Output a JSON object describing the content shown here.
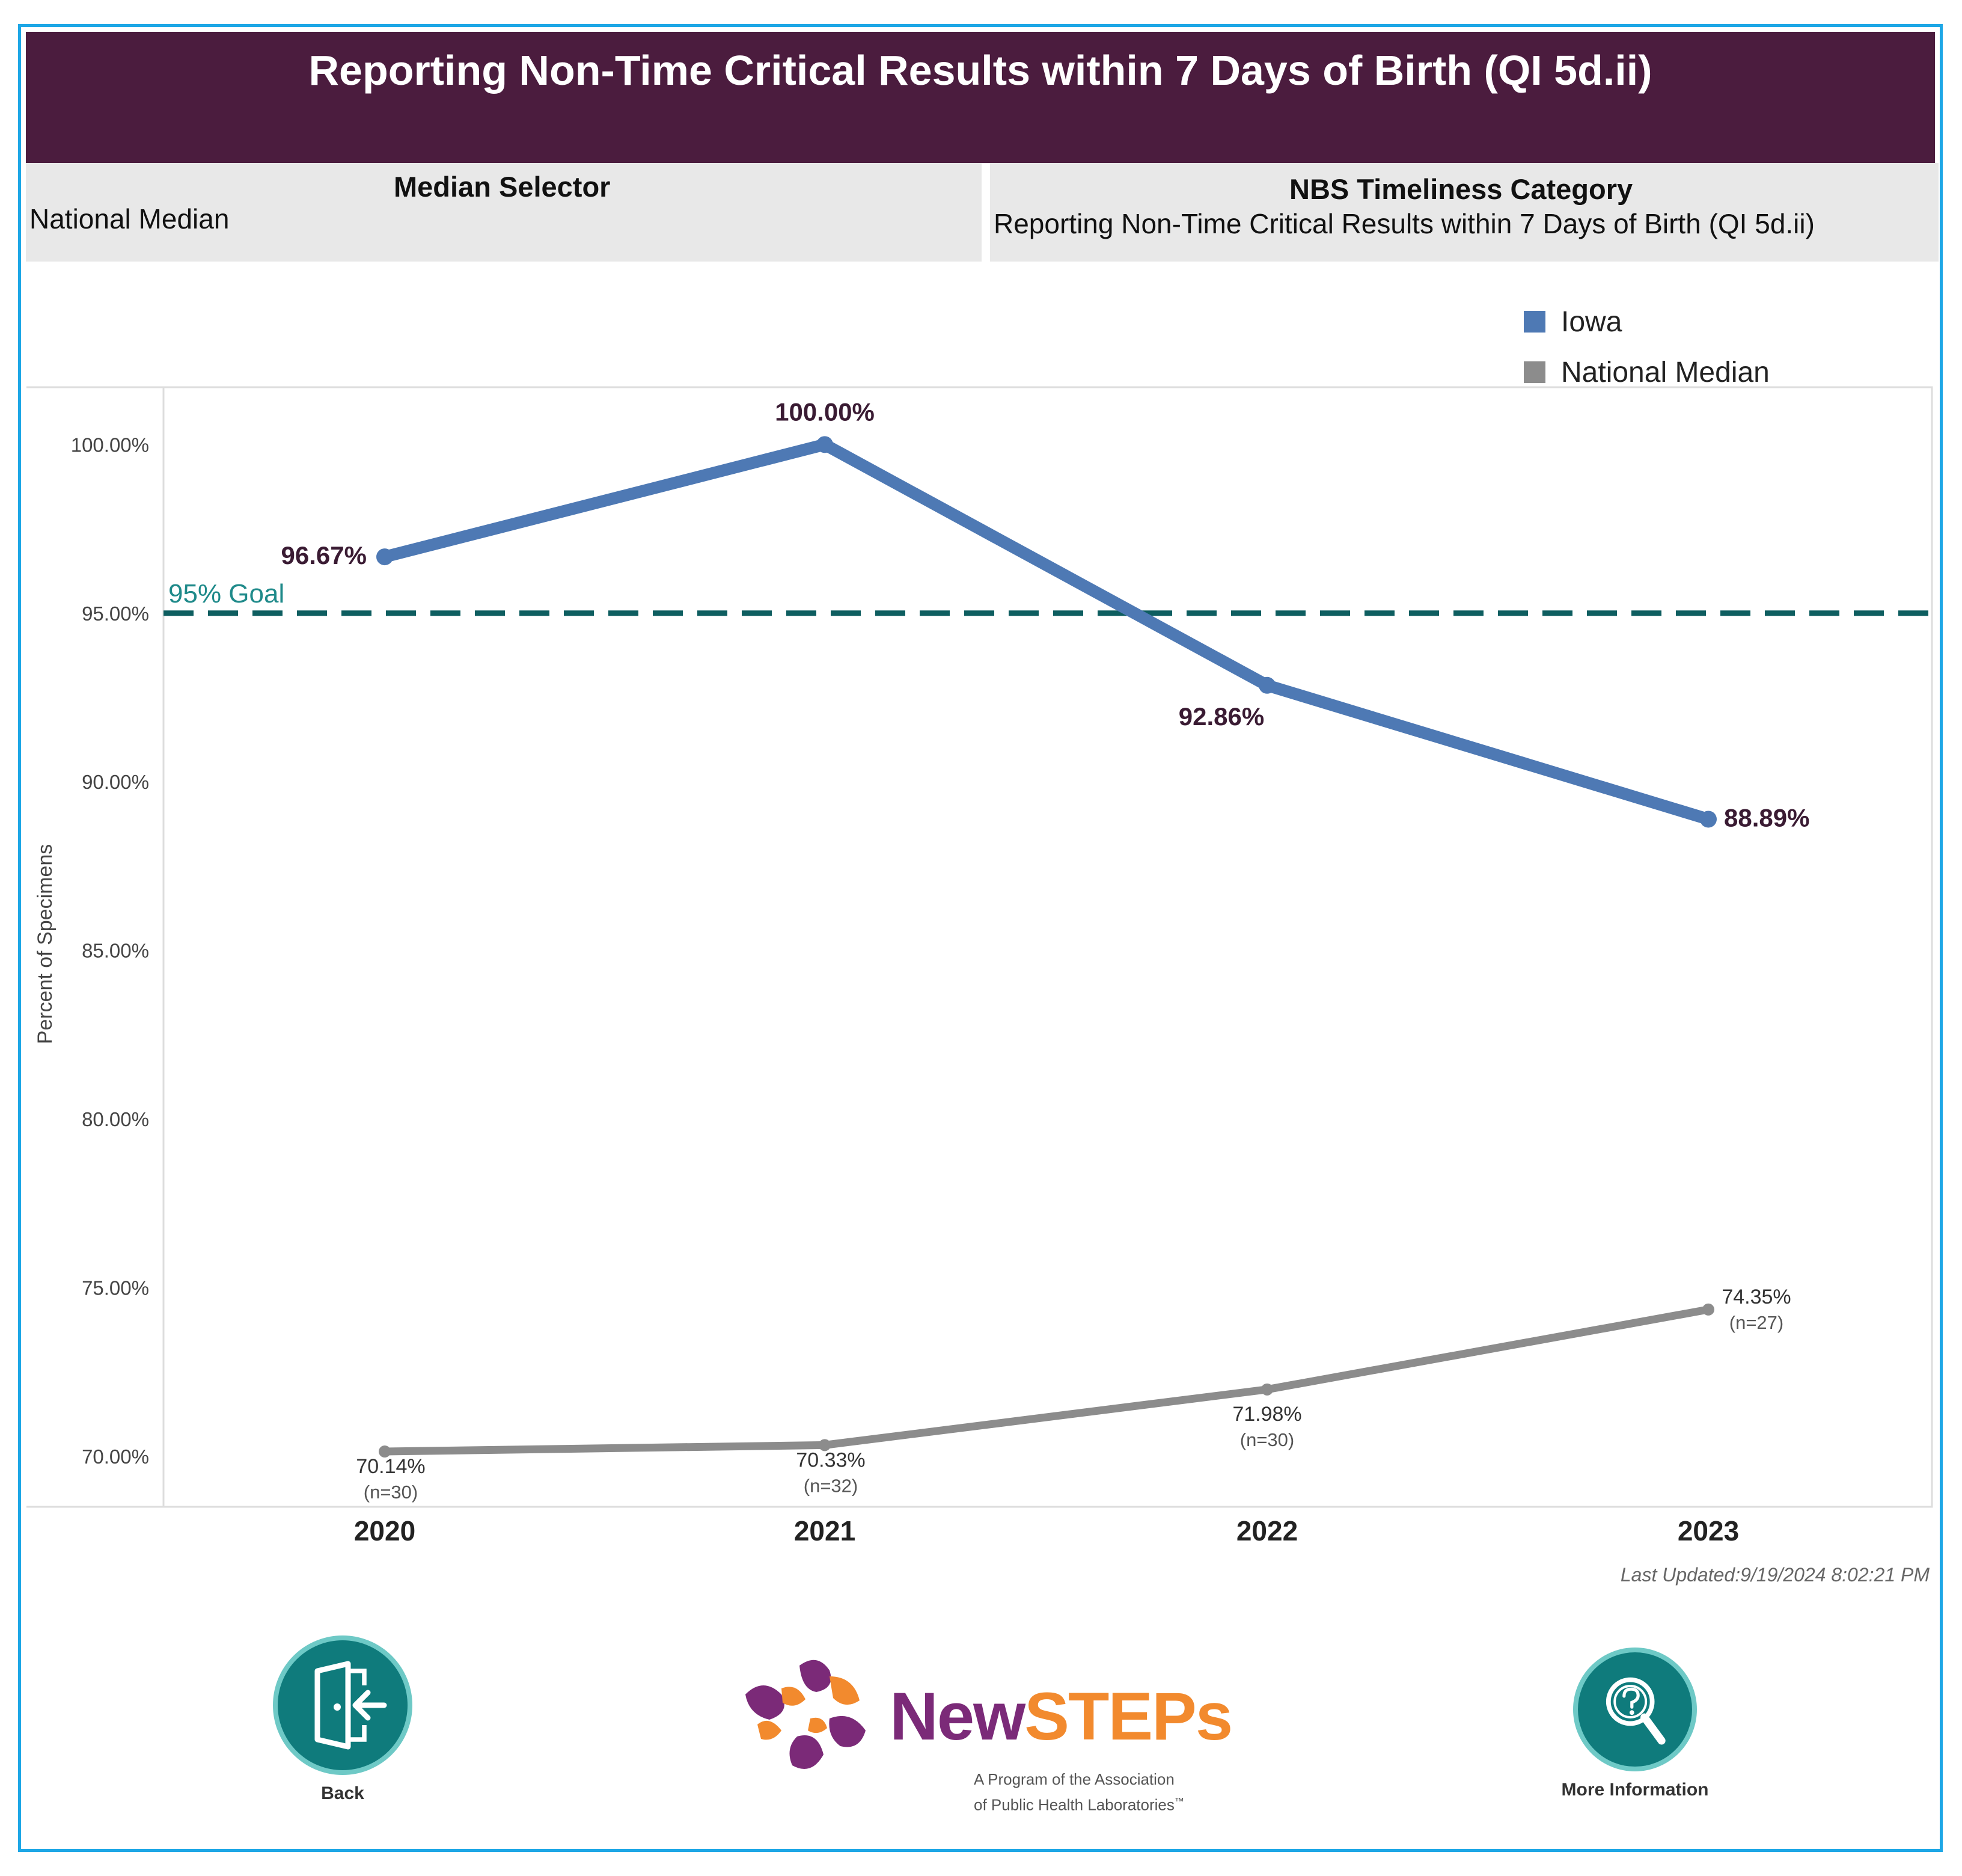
{
  "title": "Reporting Non-Time Critical Results within 7 Days of Birth (QI 5d.ii)",
  "median_selector": {
    "label": "Median Selector",
    "value": "National Median"
  },
  "timeliness_category": {
    "label": "NBS Timeliness Category",
    "value": "Reporting Non-Time Critical Results within 7 Days of Birth (QI 5d.ii)"
  },
  "legend": [
    {
      "label": "Iowa",
      "color": "#4e79b4"
    },
    {
      "label": "National Median",
      "color": "#8c8c8c"
    }
  ],
  "goal": {
    "label": "95% Goal",
    "value": 95.0,
    "color": "#0e5e60"
  },
  "last_updated": "Last Updated:9/19/2024 8:02:21 PM",
  "footer": {
    "back_label": "Back",
    "more_info_label": "More Information"
  },
  "logo": {
    "name_part1": "New",
    "name_part2": "STEPs",
    "tagline_line1": "A Program of the Association",
    "tagline_line2": "of Public Health Laboratories",
    "tagline_mark": "™"
  },
  "chart_data": {
    "type": "line",
    "title": "Reporting Non-Time Critical Results within 7 Days of Birth (QI 5d.ii)",
    "xlabel": "",
    "ylabel": "Percent of Specimens",
    "categories": [
      "2020",
      "2021",
      "2022",
      "2023"
    ],
    "ylim": [
      68.5,
      101.7
    ],
    "yticks": [
      70,
      75,
      80,
      85,
      90,
      95,
      100
    ],
    "ytick_labels": [
      "70.00%",
      "75.00%",
      "80.00%",
      "85.00%",
      "90.00%",
      "95.00%",
      "100.00%"
    ],
    "series": [
      {
        "name": "Iowa",
        "color": "#4e79b4",
        "values": [
          96.67,
          100.0,
          92.86,
          88.89
        ],
        "labels": [
          "96.67%",
          "100.00%",
          "92.86%",
          "88.89%"
        ]
      },
      {
        "name": "National Median",
        "color": "#8c8c8c",
        "values": [
          70.14,
          70.33,
          71.98,
          74.35
        ],
        "labels": [
          "70.14%",
          "70.33%",
          "71.98%",
          "74.35%"
        ],
        "n_labels": [
          "(n=30)",
          "(n=32)",
          "(n=30)",
          "(n=27)"
        ]
      }
    ]
  }
}
